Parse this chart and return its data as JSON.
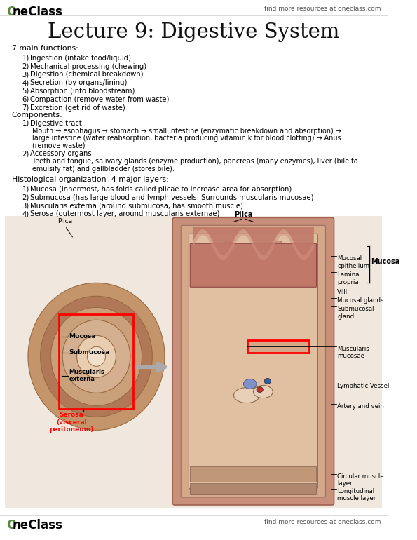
{
  "bg_color": "#ffffff",
  "title": "Lecture 9: Digestive System",
  "title_fontsize": 21,
  "header_right": "find more resources at oneclass.com",
  "footer_right": "find more resources at oneclass.com",
  "section1_header": "7 main functions:",
  "section1_items": [
    "Ingestion (intake food/liquid)",
    "Mechanical processing (chewing)",
    "Digestion (chemical breakdown)",
    "Secretion (by organs/lining)",
    "Absorption (into bloodstream)",
    "Compaction (remove water from waste)",
    "Excretion (get rid of waste)"
  ],
  "section2_header": "Components:",
  "section2_sub1_label": "Digestive tract",
  "section2_sub1_lines": [
    "Mouth → esophagus → stomach → small intestine (enzymatic breakdown and absorption) →",
    "large intestine (water reabsorption, bacteria producing vitamin k for blood clotting) → Anus",
    "(remove waste)"
  ],
  "section2_sub2_label": "Accessory organs",
  "section2_sub2_lines": [
    "Teeth and tongue, salivary glands (enzyme production), pancreas (many enzymes), liver (bile to",
    "emulsify fat) and gallbladder (stores bile)."
  ],
  "section3_header": "Histological organization- 4 major layers:",
  "section3_items": [
    "Mucosa (innermost, has folds called plicae to increase area for absorption).",
    "Submucosa (has large blood and lymph vessels. Surrounds muscularis mucosae)",
    "Muscularis externa (around submucosa, has smooth muscle)",
    "Serosa (outermost layer, around muscularis externae)"
  ],
  "text_color": "#000000",
  "logo_green": "#5a8a3c",
  "body_fontsize": 7.2,
  "section_fontsize": 7.8
}
